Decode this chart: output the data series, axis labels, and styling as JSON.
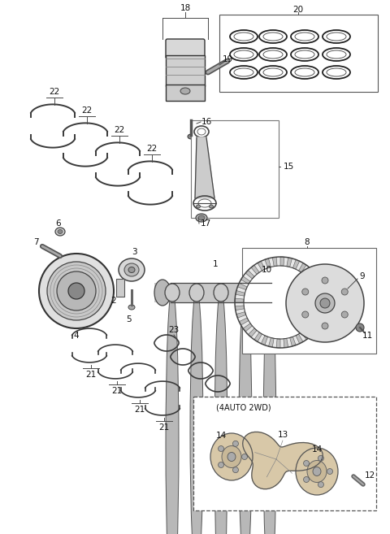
{
  "bg_color": "#ffffff",
  "line_color": "#4a4a4a",
  "label_color": "#111111",
  "fig_width": 4.8,
  "fig_height": 6.57,
  "dpi": 100
}
